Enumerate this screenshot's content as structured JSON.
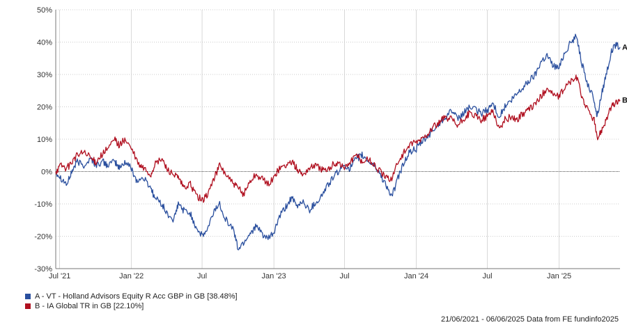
{
  "chart_data": {
    "type": "line",
    "ylim": [
      -30,
      50
    ],
    "y_ticks": [
      -30,
      -20,
      -10,
      0,
      10,
      20,
      30,
      40,
      50
    ],
    "y_tick_labels": [
      "-30%",
      "-20%",
      "-10%",
      "0%",
      "10%",
      "20%",
      "30%",
      "40%",
      "50%"
    ],
    "x_tick_dates": [
      "2021-07-01",
      "2022-01-01",
      "2022-07-01",
      "2023-01-01",
      "2023-07-01",
      "2024-01-01",
      "2024-07-01",
      "2025-01-01"
    ],
    "x_tick_labels": [
      "Jul '21",
      "Jan '22",
      "Jul",
      "Jan '23",
      "Jul",
      "Jan '24",
      "Jul",
      "Jan '25"
    ],
    "x_range": [
      "2021-06-21",
      "2025-06-06"
    ],
    "grid": true,
    "zero_line": true,
    "legend_position": "bottom-left",
    "series": [
      {
        "name": "A - VT - Holland Advisors Equity R Acc GBP in GB [38.48%]",
        "end_label": "A",
        "color": "#2a4f9e",
        "points": [
          [
            "2021-06-21",
            0
          ],
          [
            "2021-07-05",
            -2
          ],
          [
            "2021-07-20",
            -4
          ],
          [
            "2021-08-01",
            0
          ],
          [
            "2021-08-15",
            3
          ],
          [
            "2021-09-01",
            2
          ],
          [
            "2021-09-20",
            4
          ],
          [
            "2021-10-01",
            2
          ],
          [
            "2021-10-20",
            3
          ],
          [
            "2021-11-01",
            2
          ],
          [
            "2021-11-20",
            3
          ],
          [
            "2021-12-01",
            1
          ],
          [
            "2021-12-15",
            3
          ],
          [
            "2022-01-01",
            1
          ],
          [
            "2022-01-15",
            -3
          ],
          [
            "2022-02-01",
            -2
          ],
          [
            "2022-02-20",
            -5
          ],
          [
            "2022-03-01",
            -8
          ],
          [
            "2022-03-20",
            -10
          ],
          [
            "2022-04-01",
            -13
          ],
          [
            "2022-04-20",
            -15
          ],
          [
            "2022-05-01",
            -10
          ],
          [
            "2022-05-15",
            -12
          ],
          [
            "2022-06-01",
            -13
          ],
          [
            "2022-06-15",
            -17
          ],
          [
            "2022-07-01",
            -20
          ],
          [
            "2022-07-15",
            -18
          ],
          [
            "2022-08-01",
            -12
          ],
          [
            "2022-08-15",
            -10
          ],
          [
            "2022-09-01",
            -15
          ],
          [
            "2022-09-20",
            -18
          ],
          [
            "2022-10-01",
            -24
          ],
          [
            "2022-10-15",
            -22
          ],
          [
            "2022-11-01",
            -19
          ],
          [
            "2022-11-15",
            -17
          ],
          [
            "2022-12-01",
            -19
          ],
          [
            "2022-12-15",
            -21
          ],
          [
            "2023-01-01",
            -19
          ],
          [
            "2023-01-15",
            -14
          ],
          [
            "2023-02-01",
            -11
          ],
          [
            "2023-02-15",
            -8
          ],
          [
            "2023-03-01",
            -11
          ],
          [
            "2023-03-15",
            -9
          ],
          [
            "2023-04-01",
            -12
          ],
          [
            "2023-04-15",
            -10
          ],
          [
            "2023-05-01",
            -8
          ],
          [
            "2023-05-15",
            -5
          ],
          [
            "2023-06-01",
            -2
          ],
          [
            "2023-06-15",
            0
          ],
          [
            "2023-07-01",
            2
          ],
          [
            "2023-07-15",
            1
          ],
          [
            "2023-08-01",
            4
          ],
          [
            "2023-08-15",
            5
          ],
          [
            "2023-09-01",
            3
          ],
          [
            "2023-09-15",
            2
          ],
          [
            "2023-10-01",
            -1
          ],
          [
            "2023-10-15",
            -4
          ],
          [
            "2023-10-30",
            -8
          ],
          [
            "2023-11-15",
            -2
          ],
          [
            "2023-12-01",
            3
          ],
          [
            "2023-12-15",
            6
          ],
          [
            "2024-01-01",
            7
          ],
          [
            "2024-01-15",
            9
          ],
          [
            "2024-02-01",
            11
          ],
          [
            "2024-02-15",
            13
          ],
          [
            "2024-03-01",
            15
          ],
          [
            "2024-03-15",
            17
          ],
          [
            "2024-04-01",
            19
          ],
          [
            "2024-04-15",
            16
          ],
          [
            "2024-05-01",
            18
          ],
          [
            "2024-05-15",
            20
          ],
          [
            "2024-06-01",
            19
          ],
          [
            "2024-06-15",
            18
          ],
          [
            "2024-07-01",
            19
          ],
          [
            "2024-07-15",
            21
          ],
          [
            "2024-08-01",
            17
          ],
          [
            "2024-08-15",
            20
          ],
          [
            "2024-09-01",
            22
          ],
          [
            "2024-09-15",
            24
          ],
          [
            "2024-10-01",
            26
          ],
          [
            "2024-10-15",
            28
          ],
          [
            "2024-11-01",
            30
          ],
          [
            "2024-11-15",
            34
          ],
          [
            "2024-12-01",
            36
          ],
          [
            "2024-12-15",
            33
          ],
          [
            "2025-01-01",
            32
          ],
          [
            "2025-01-15",
            37
          ],
          [
            "2025-02-01",
            40
          ],
          [
            "2025-02-15",
            42
          ],
          [
            "2025-03-01",
            33
          ],
          [
            "2025-03-15",
            27
          ],
          [
            "2025-04-01",
            22
          ],
          [
            "2025-04-08",
            17
          ],
          [
            "2025-04-20",
            24
          ],
          [
            "2025-05-01",
            30
          ],
          [
            "2025-05-15",
            37
          ],
          [
            "2025-05-25",
            39
          ],
          [
            "2025-06-06",
            38.48
          ]
        ]
      },
      {
        "name": "B - IA Global TR in GB [22.10%]",
        "end_label": "B",
        "color": "#b01020",
        "points": [
          [
            "2021-06-21",
            0
          ],
          [
            "2021-07-05",
            2
          ],
          [
            "2021-07-20",
            1
          ],
          [
            "2021-08-01",
            3
          ],
          [
            "2021-08-15",
            5
          ],
          [
            "2021-09-01",
            6
          ],
          [
            "2021-09-20",
            4
          ],
          [
            "2021-10-01",
            3
          ],
          [
            "2021-10-15",
            5
          ],
          [
            "2021-11-01",
            7
          ],
          [
            "2021-11-20",
            10
          ],
          [
            "2021-12-01",
            8
          ],
          [
            "2021-12-15",
            10
          ],
          [
            "2022-01-01",
            7
          ],
          [
            "2022-01-20",
            2
          ],
          [
            "2022-02-01",
            1
          ],
          [
            "2022-02-20",
            -1
          ],
          [
            "2022-03-01",
            2
          ],
          [
            "2022-03-20",
            4
          ],
          [
            "2022-04-01",
            1
          ],
          [
            "2022-04-20",
            -1
          ],
          [
            "2022-05-01",
            -2
          ],
          [
            "2022-05-15",
            -5
          ],
          [
            "2022-06-01",
            -4
          ],
          [
            "2022-06-15",
            -7
          ],
          [
            "2022-07-01",
            -9
          ],
          [
            "2022-07-15",
            -7
          ],
          [
            "2022-08-01",
            -2
          ],
          [
            "2022-08-15",
            2
          ],
          [
            "2022-09-01",
            -1
          ],
          [
            "2022-09-20",
            -4
          ],
          [
            "2022-10-01",
            -5
          ],
          [
            "2022-10-15",
            -7
          ],
          [
            "2022-11-01",
            -3
          ],
          [
            "2022-11-15",
            -1
          ],
          [
            "2022-12-01",
            -2
          ],
          [
            "2022-12-15",
            -4
          ],
          [
            "2023-01-01",
            -2
          ],
          [
            "2023-01-15",
            1
          ],
          [
            "2023-02-01",
            2
          ],
          [
            "2023-02-15",
            3
          ],
          [
            "2023-03-01",
            1
          ],
          [
            "2023-03-15",
            -1
          ],
          [
            "2023-04-01",
            1
          ],
          [
            "2023-04-15",
            2
          ],
          [
            "2023-05-01",
            1
          ],
          [
            "2023-05-15",
            0
          ],
          [
            "2023-06-01",
            2
          ],
          [
            "2023-06-15",
            3
          ],
          [
            "2023-07-01",
            1
          ],
          [
            "2023-07-15",
            3
          ],
          [
            "2023-08-01",
            5
          ],
          [
            "2023-08-15",
            3
          ],
          [
            "2023-09-01",
            4
          ],
          [
            "2023-09-15",
            2
          ],
          [
            "2023-10-01",
            0
          ],
          [
            "2023-10-15",
            -2
          ],
          [
            "2023-10-30",
            -2
          ],
          [
            "2023-11-15",
            3
          ],
          [
            "2023-12-01",
            6
          ],
          [
            "2023-12-15",
            8
          ],
          [
            "2024-01-01",
            9
          ],
          [
            "2024-01-15",
            10
          ],
          [
            "2024-02-01",
            12
          ],
          [
            "2024-02-15",
            14
          ],
          [
            "2024-03-01",
            15
          ],
          [
            "2024-03-15",
            17
          ],
          [
            "2024-04-01",
            16
          ],
          [
            "2024-04-15",
            14
          ],
          [
            "2024-05-01",
            16
          ],
          [
            "2024-05-15",
            18
          ],
          [
            "2024-06-01",
            17
          ],
          [
            "2024-06-15",
            16
          ],
          [
            "2024-07-01",
            17
          ],
          [
            "2024-07-15",
            19
          ],
          [
            "2024-08-01",
            13
          ],
          [
            "2024-08-15",
            16
          ],
          [
            "2024-09-01",
            17
          ],
          [
            "2024-09-15",
            16
          ],
          [
            "2024-10-01",
            18
          ],
          [
            "2024-10-15",
            19
          ],
          [
            "2024-11-01",
            21
          ],
          [
            "2024-11-15",
            23
          ],
          [
            "2024-12-01",
            26
          ],
          [
            "2024-12-15",
            24
          ],
          [
            "2025-01-01",
            23
          ],
          [
            "2025-01-15",
            26
          ],
          [
            "2025-02-01",
            28
          ],
          [
            "2025-02-15",
            29
          ],
          [
            "2025-03-01",
            23
          ],
          [
            "2025-03-15",
            19
          ],
          [
            "2025-04-01",
            16
          ],
          [
            "2025-04-08",
            10
          ],
          [
            "2025-04-20",
            13
          ],
          [
            "2025-05-01",
            16
          ],
          [
            "2025-05-15",
            20
          ],
          [
            "2025-05-25",
            21
          ],
          [
            "2025-06-06",
            22.1
          ]
        ]
      }
    ]
  },
  "footer": {
    "text": "21/06/2021 - 06/06/2025 Data from FE fundinfo2025"
  }
}
